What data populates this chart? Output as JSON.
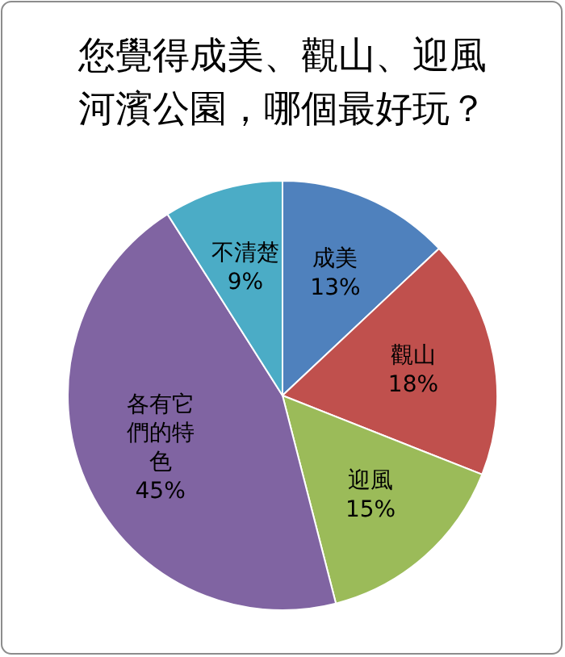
{
  "chart_data": {
    "type": "pie",
    "title": "您覺得成美、觀山、迎風河濱公園，哪個最好玩？",
    "categories": [
      "成美",
      "觀山",
      "迎風",
      "各有它們的特色",
      "不清楚"
    ],
    "values": [
      13,
      18,
      15,
      45,
      9
    ],
    "value_labels": [
      "13%",
      "18%",
      "15%",
      "45%",
      "9%"
    ],
    "colors": [
      "#4f81bd",
      "#c0504d",
      "#9bbb59",
      "#8064a2",
      "#4bacc6"
    ],
    "legend": false
  }
}
